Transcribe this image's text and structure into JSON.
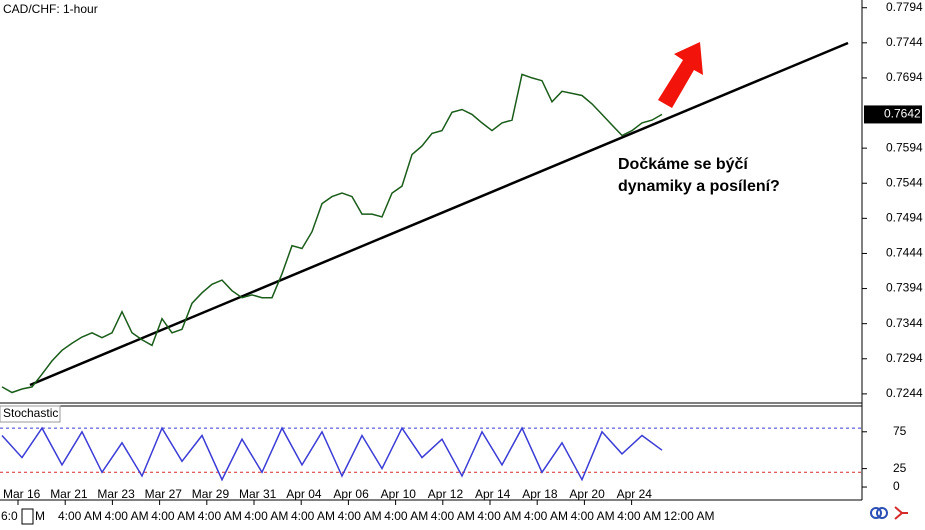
{
  "chart_data": [
    {
      "type": "line",
      "title": "CAD/CHF: 1-hour",
      "color": "#1a5c1a",
      "values": [
        0.7254,
        0.7246,
        0.7251,
        0.7254,
        0.7272,
        0.7291,
        0.7306,
        0.7316,
        0.7325,
        0.7331,
        0.7324,
        0.7331,
        0.7361,
        0.7331,
        0.7321,
        0.7313,
        0.7351,
        0.7331,
        0.7336,
        0.7373,
        0.7388,
        0.74,
        0.7406,
        0.7391,
        0.7381,
        0.7385,
        0.7381,
        0.7381,
        0.7415,
        0.7455,
        0.7451,
        0.7475,
        0.7515,
        0.7525,
        0.753,
        0.7525,
        0.75,
        0.75,
        0.7496,
        0.753,
        0.754,
        0.7585,
        0.7597,
        0.7615,
        0.7619,
        0.7645,
        0.7649,
        0.7642,
        0.763,
        0.7619,
        0.763,
        0.7634,
        0.7699,
        0.7694,
        0.769,
        0.766,
        0.7675,
        0.7672,
        0.7669,
        0.7657,
        0.7642,
        0.7627,
        0.7612,
        0.7619,
        0.763,
        0.7634,
        0.7642
      ],
      "ylim": [
        0.7231,
        0.7805
      ],
      "yticks": [
        0.7794,
        0.7744,
        0.7694,
        0.7594,
        0.7544,
        0.7494,
        0.7444,
        0.7394,
        0.7344,
        0.7294,
        0.7244
      ],
      "current_price": 0.7642,
      "annotation": [
        "Dočkáme se býčí",
        "dynamiky a posílení?"
      ],
      "x_labels": [
        "Mar 16",
        "Mar 21",
        "Mar 23",
        "Mar 27",
        "Mar 29",
        "Mar 31",
        "Apr 04",
        "Apr 06",
        "Apr 10",
        "Apr 12",
        "Apr 14",
        "Apr 18",
        "Apr 20",
        "Apr 24"
      ],
      "x_labels_2": [
        "6:0",
        "M",
        "4:00 AM",
        "4:00 AM",
        "4:00 AM",
        "4:00 AM",
        "4:00 AM",
        "4:00 AM",
        "4:00 AM",
        "4:00 AM",
        "4:00 AM",
        "4:00 AM",
        "4:00 AM",
        "4:00 AM",
        "4:00 AM",
        "12:00 AM"
      ]
    },
    {
      "type": "line",
      "title": "Stochastic",
      "color": "#3b3bd6",
      "values": [
        70,
        40,
        80,
        30,
        75,
        20,
        60,
        15,
        80,
        35,
        70,
        10,
        65,
        20,
        80,
        30,
        75,
        15,
        70,
        25,
        80,
        40,
        65,
        15,
        75,
        30,
        80,
        20,
        60,
        10,
        75,
        45,
        70,
        50
      ],
      "ylim": [
        -17.6,
        110
      ],
      "yticks": [
        75,
        25,
        0
      ],
      "levels": [
        80,
        20
      ],
      "level_colors": [
        "#3b3bd6",
        "#d62b2b"
      ]
    }
  ]
}
